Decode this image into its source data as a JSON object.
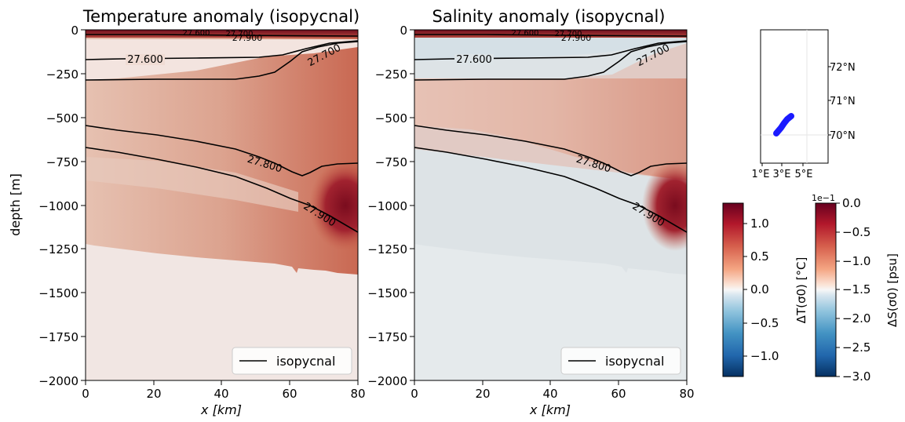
{
  "chart_data": [
    {
      "type": "heatmap",
      "title": "Temperature anomaly (isopycnal)",
      "xlabel": "x [km]",
      "ylabel": "depth [m]",
      "xlim": [
        0,
        80
      ],
      "ylim": [
        -2000,
        0
      ],
      "xticks": [
        "0",
        "20",
        "40",
        "60",
        "80"
      ],
      "yticks": [
        "0",
        "−250",
        "−500",
        "−750",
        "−1000",
        "−1250",
        "−1500",
        "−1750",
        "−2000"
      ],
      "legend": {
        "label": "isopycnal",
        "position": "lower right"
      },
      "contour_labels": [
        "27.600",
        "27.700",
        "27.800",
        "27.900",
        "27.900",
        "27.700",
        "27.600"
      ],
      "isopycnals": [
        {
          "label": "27.600",
          "x": [
            0,
            5,
            10,
            20,
            30,
            40,
            50,
            55,
            60,
            65,
            70,
            75,
            80
          ],
          "depth": [
            -175,
            -170,
            -168,
            -165,
            -162,
            -160,
            -150,
            -130,
            -100,
            -80,
            -60,
            -45,
            -35
          ]
        },
        {
          "label": "27.700",
          "x": [
            0,
            10,
            20,
            30,
            40,
            45,
            50,
            55,
            60,
            65,
            70,
            75,
            80
          ],
          "depth": [
            -290,
            -285,
            -285,
            -285,
            -280,
            -270,
            -240,
            -180,
            -130,
            -100,
            -80,
            -60,
            -45
          ]
        },
        {
          "label": "27.800",
          "x": [
            0,
            10,
            20,
            30,
            40,
            50,
            55,
            60,
            63,
            66,
            70,
            74,
            77,
            80
          ],
          "depth": [
            -550,
            -575,
            -600,
            -635,
            -670,
            -730,
            -770,
            -820,
            -860,
            -885,
            -860,
            -830,
            -815,
            -810
          ]
        },
        {
          "label": "27.900",
          "x": [
            0,
            10,
            20,
            30,
            40,
            50,
            60,
            65,
            70,
            75,
            80
          ],
          "depth": [
            -675,
            -700,
            -730,
            -770,
            -820,
            -880,
            -960,
            -1010,
            -1070,
            -1130,
            -1155
          ]
        }
      ],
      "anomaly": {
        "background": 0.05,
        "upper_layer": 0.5,
        "deep_core": 1.2,
        "core_x": [
          72,
          80
        ],
        "core_depth": [
          -820,
          -1150
        ]
      }
    },
    {
      "type": "heatmap",
      "title": "Salinity anomaly (isopycnal)",
      "xlabel": "x [km]",
      "xlim": [
        0,
        80
      ],
      "ylim": [
        -2000,
        0
      ],
      "xticks": [
        "0",
        "20",
        "40",
        "60",
        "80"
      ],
      "legend": {
        "label": "isopycnal",
        "position": "lower right"
      },
      "contour_labels": [
        "27.600",
        "27.700",
        "27.800",
        "27.900",
        "27.900",
        "27.700",
        "27.600"
      ]
    },
    {
      "type": "map",
      "xticks": [
        "1°E",
        "3°E",
        "5°E"
      ],
      "yticks": [
        "72°N",
        "71°N",
        "70°N"
      ],
      "track": {
        "lon": [
          2.6,
          3.1,
          3.5,
          4.0
        ],
        "lat": [
          70.0,
          70.3,
          70.5,
          70.7
        ]
      }
    },
    {
      "type": "colorbar",
      "label": "ΔT(σ0) [°C]",
      "ticks": [
        "1.0",
        "0.5",
        "0.0",
        "−0.5",
        "−1.0"
      ],
      "range": [
        -1.3,
        1.3
      ]
    },
    {
      "type": "colorbar",
      "label": "ΔS(σ0) [psu]",
      "multiplier": "1e−1",
      "ticks": [
        "0.0",
        "−0.5",
        "−1.0",
        "−1.5",
        "−2.0",
        "−2.5",
        "−3.0"
      ],
      "range": [
        -3.0,
        0.0
      ]
    }
  ]
}
